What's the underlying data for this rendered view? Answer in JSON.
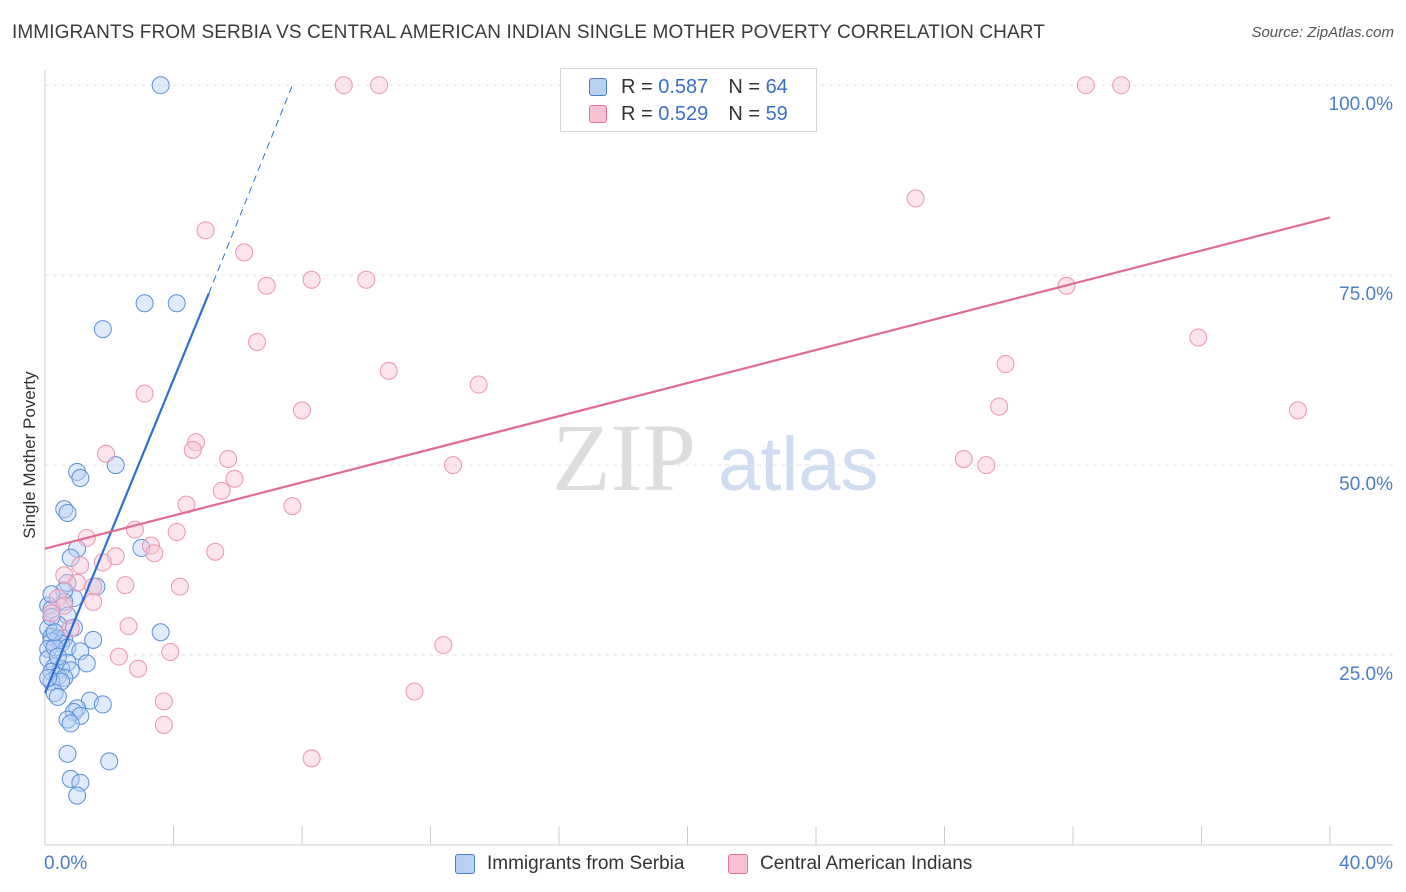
{
  "title": "IMMIGRANTS FROM SERBIA VS CENTRAL AMERICAN INDIAN SINGLE MOTHER POVERTY CORRELATION CHART",
  "source": "Source: ZipAtlas.com",
  "watermark": {
    "zip": "ZIP",
    "atlas": "atlas"
  },
  "colors": {
    "blue": "#4a7cc9",
    "pink": "#e8729b",
    "blue_fill": "#b8d1f3",
    "pink_fill": "#f7c3d3"
  },
  "legend": {
    "rows": [
      {
        "r_label": "R =",
        "r_value": "0.587",
        "n_label": "N =",
        "n_value": "64"
      },
      {
        "r_label": "R =",
        "r_value": "0.529",
        "n_label": "N =",
        "n_value": "59"
      }
    ]
  },
  "chart_data": {
    "type": "scatter",
    "title": "IMMIGRANTS FROM SERBIA VS CENTRAL AMERICAN INDIAN SINGLE MOTHER POVERTY CORRELATION CHART",
    "xlabel": "",
    "ylabel": "Single Mother Poverty",
    "xlim": [
      0,
      40
    ],
    "ylim": [
      0,
      102
    ],
    "x_tick_labels": [
      "0.0%",
      "40.0%"
    ],
    "y_ticks": [
      25,
      50,
      75,
      100
    ],
    "y_tick_labels": [
      "25.0%",
      "50.0%",
      "75.0%",
      "100.0%"
    ],
    "legend_position": "bottom-center",
    "series": [
      {
        "name": "Immigrants from Serbia",
        "color": "#4a7cc9",
        "r": 0.587,
        "n": 64,
        "trendline": {
          "x1": 0.0,
          "y1": 20.0,
          "x2": 5.1,
          "y2": 72.6,
          "dash_x2": 7.7,
          "dash_y2": 100.0
        },
        "points": [
          [
            3.6,
            100.0
          ],
          [
            3.1,
            71.3
          ],
          [
            4.1,
            71.3
          ],
          [
            1.8,
            67.9
          ],
          [
            2.2,
            50.0
          ],
          [
            1.0,
            49.1
          ],
          [
            1.1,
            48.3
          ],
          [
            0.6,
            44.2
          ],
          [
            0.7,
            43.7
          ],
          [
            3.0,
            39.1
          ],
          [
            1.0,
            39.0
          ],
          [
            0.8,
            37.8
          ],
          [
            0.7,
            34.5
          ],
          [
            1.6,
            34.0
          ],
          [
            0.9,
            32.5
          ],
          [
            0.6,
            32.0
          ],
          [
            0.1,
            31.5
          ],
          [
            0.2,
            31.0
          ],
          [
            0.7,
            30.2
          ],
          [
            0.4,
            29.0
          ],
          [
            0.1,
            28.5
          ],
          [
            3.6,
            28.0
          ],
          [
            0.2,
            27.4
          ],
          [
            0.4,
            27.2
          ],
          [
            0.6,
            27.2
          ],
          [
            1.5,
            27.0
          ],
          [
            0.2,
            26.8
          ],
          [
            0.5,
            26.5
          ],
          [
            0.7,
            26.0
          ],
          [
            0.1,
            25.8
          ],
          [
            1.1,
            25.5
          ],
          [
            0.1,
            24.5
          ],
          [
            0.7,
            24.0
          ],
          [
            1.3,
            23.9
          ],
          [
            0.3,
            23.5
          ],
          [
            0.5,
            23.2
          ],
          [
            0.8,
            23.0
          ],
          [
            0.2,
            22.8
          ],
          [
            0.4,
            22.2
          ],
          [
            0.6,
            22.0
          ],
          [
            0.2,
            21.5
          ],
          [
            0.5,
            21.5
          ],
          [
            0.3,
            20.0
          ],
          [
            0.4,
            19.5
          ],
          [
            1.4,
            19.0
          ],
          [
            1.8,
            18.5
          ],
          [
            1.0,
            18.0
          ],
          [
            0.9,
            17.5
          ],
          [
            1.1,
            17.0
          ],
          [
            0.7,
            16.5
          ],
          [
            0.8,
            16.0
          ],
          [
            0.7,
            12.0
          ],
          [
            2.0,
            11.0
          ],
          [
            0.8,
            8.7
          ],
          [
            1.1,
            8.2
          ],
          [
            1.0,
            6.5
          ],
          [
            0.3,
            26.0
          ],
          [
            0.4,
            24.8
          ],
          [
            0.2,
            30.0
          ],
          [
            0.9,
            28.6
          ],
          [
            0.6,
            33.5
          ],
          [
            0.2,
            33.0
          ],
          [
            0.1,
            22.0
          ],
          [
            0.3,
            28.0
          ]
        ]
      },
      {
        "name": "Central American Indians",
        "color": "#e8729b",
        "r": 0.529,
        "n": 59,
        "trendline": {
          "x1": 0.0,
          "y1": 39.0,
          "x2": 40.0,
          "y2": 82.6
        },
        "points": [
          [
            9.3,
            100.0
          ],
          [
            10.4,
            100.0
          ],
          [
            32.4,
            100.0
          ],
          [
            33.5,
            100.0
          ],
          [
            27.1,
            85.1
          ],
          [
            5.0,
            80.9
          ],
          [
            6.2,
            78.0
          ],
          [
            8.3,
            74.4
          ],
          [
            10.0,
            74.4
          ],
          [
            6.9,
            73.6
          ],
          [
            31.8,
            73.6
          ],
          [
            6.6,
            66.2
          ],
          [
            35.9,
            66.8
          ],
          [
            29.9,
            63.3
          ],
          [
            10.7,
            62.4
          ],
          [
            13.5,
            60.6
          ],
          [
            3.1,
            59.4
          ],
          [
            8.0,
            57.2
          ],
          [
            29.7,
            57.7
          ],
          [
            39.0,
            57.2
          ],
          [
            4.7,
            53.0
          ],
          [
            4.6,
            52.0
          ],
          [
            1.9,
            51.5
          ],
          [
            5.7,
            50.8
          ],
          [
            28.6,
            50.8
          ],
          [
            29.3,
            50.0
          ],
          [
            12.7,
            50.0
          ],
          [
            5.9,
            48.2
          ],
          [
            5.5,
            46.6
          ],
          [
            4.4,
            44.8
          ],
          [
            7.7,
            44.6
          ],
          [
            2.8,
            41.5
          ],
          [
            4.1,
            41.2
          ],
          [
            1.3,
            40.4
          ],
          [
            3.3,
            39.4
          ],
          [
            3.4,
            38.4
          ],
          [
            5.3,
            38.6
          ],
          [
            2.2,
            38.0
          ],
          [
            1.8,
            37.2
          ],
          [
            1.1,
            36.8
          ],
          [
            0.6,
            35.5
          ],
          [
            1.0,
            34.5
          ],
          [
            2.5,
            34.2
          ],
          [
            4.2,
            34.0
          ],
          [
            1.5,
            34.0
          ],
          [
            0.4,
            32.5
          ],
          [
            1.5,
            32.0
          ],
          [
            0.6,
            31.5
          ],
          [
            0.2,
            30.5
          ],
          [
            2.6,
            28.8
          ],
          [
            0.8,
            28.5
          ],
          [
            12.4,
            26.3
          ],
          [
            3.9,
            25.4
          ],
          [
            2.3,
            24.8
          ],
          [
            2.9,
            23.2
          ],
          [
            11.5,
            20.2
          ],
          [
            3.7,
            18.9
          ],
          [
            3.7,
            15.8
          ],
          [
            8.3,
            11.4
          ]
        ]
      }
    ]
  }
}
